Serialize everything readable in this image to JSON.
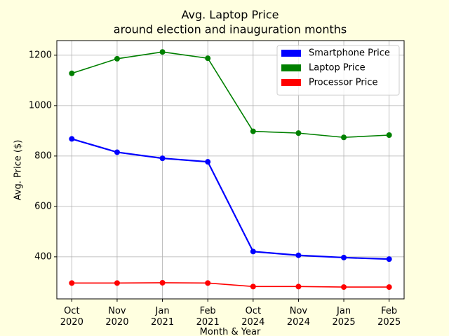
{
  "chart_data": {
    "type": "line",
    "title": "Avg. Laptop Price",
    "subtitle": "around election and inauguration months",
    "x_label": "Month & Year",
    "y_label": "Avg. Price ($)",
    "categories": [
      "Oct\n2020",
      "Nov\n2020",
      "Jan\n2021",
      "Feb\n2021",
      "Oct\n2024",
      "Nov\n2024",
      "Jan\n2025",
      "Feb\n2025"
    ],
    "series": [
      {
        "name": "Smartphone Price",
        "color": "#0000ff",
        "values": [
          868,
          815,
          791,
          777,
          421,
          406,
          397,
          391
        ]
      },
      {
        "name": "Laptop Price",
        "color": "#008000",
        "values": [
          1128,
          1186,
          1213,
          1188,
          898,
          891,
          874,
          883
        ]
      },
      {
        "name": "Processor Price",
        "color": "#ff0000",
        "values": [
          296,
          296,
          297,
          296,
          282,
          282,
          280,
          280
        ]
      }
    ],
    "ylim": [
      233,
      1258
    ],
    "yticks": [
      400,
      600,
      800,
      1000,
      1200
    ],
    "grid": true,
    "legend": "upper right"
  }
}
